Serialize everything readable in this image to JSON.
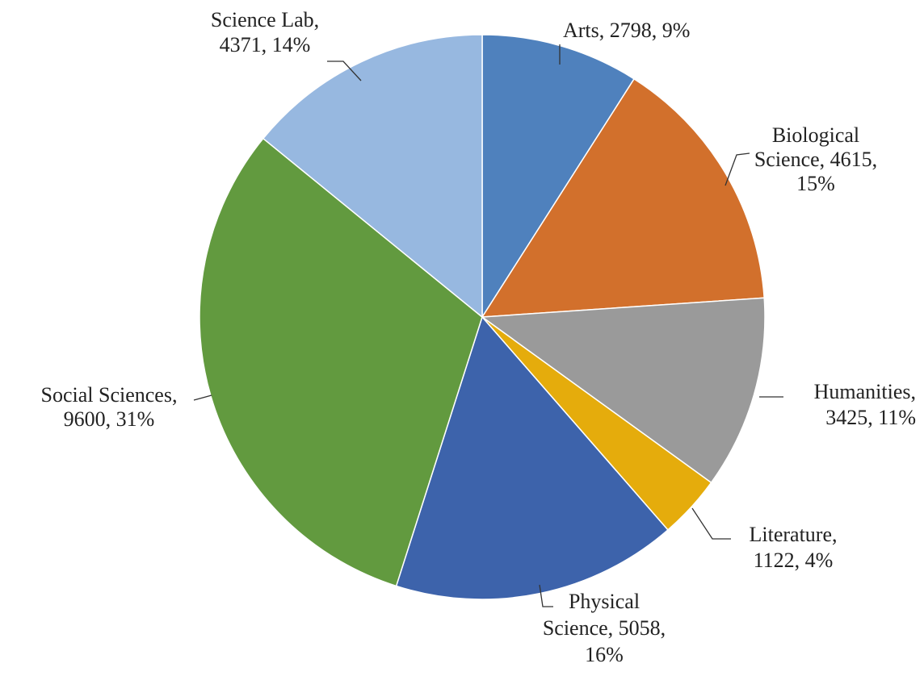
{
  "chart_data": {
    "type": "pie",
    "values": [
      2798,
      4615,
      3425,
      1122,
      5058,
      9600,
      4371
    ],
    "value_labels": [
      "Arts, 2798, 9%",
      "Biological\nScience, 4615,\n15%",
      "Humanities,\n3425, 11%",
      "Literature,\n1122, 4%",
      "Physical\nScience, 5058,\n16%",
      "Social Sciences,\n9600, 31%",
      "Science Lab,\n4371, 14%"
    ],
    "colors": [
      "#4f81bd",
      "#d2702c",
      "#9a9a9a",
      "#e5ac0c",
      "#3d63ab",
      "#629a3f",
      "#97b8e0"
    ]
  }
}
